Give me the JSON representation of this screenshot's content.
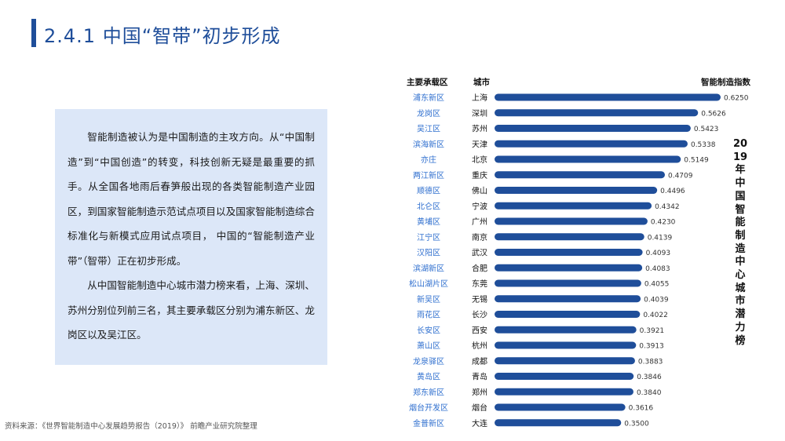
{
  "title": "2.4.1 中国“智带”初步形成",
  "paragraph1": "智能制造被认为是中国制造的主攻方向。从“中国制造”到“中国创造”的转变，科技创新无疑是最重要的抓手。从全国各地雨后春笋般出现的各类智能制造产业园区，到国家智能制造示范试点项目以及国家智能制造综合标准化与新模式应用试点项目， 中国的“智能制造产业带”（智带）正在初步形成。",
  "paragraph2": "从中国智能制造中心城市潜力榜来看，上海、深圳、苏州分别位列前三名，其主要承载区分别为浦东新区、龙岗区以及吴江区。",
  "source": "资料来源：《世界智能制造中心发展趋势报告（2019）》 前瞻产业研究院整理",
  "headers": {
    "zone": "主要承载区",
    "city": "城市",
    "index": "智能制造指数"
  },
  "vertical_title": "2019年中国智能制造中心城市潜力榜",
  "colors": {
    "bar": "#1f4e9a",
    "zone_text": "#2f6fcf",
    "title": "#1f4e9a",
    "panel": "#dce7f8"
  },
  "chart_data": {
    "type": "bar",
    "orientation": "horizontal",
    "title": "2019年中国智能制造中心城市潜力榜",
    "value_label": "智能制造指数",
    "categories": [
      "上海",
      "深圳",
      "苏州",
      "天津",
      "北京",
      "重庆",
      "佛山",
      "宁波",
      "广州",
      "南京",
      "武汉",
      "合肥",
      "东莞",
      "无锡",
      "长沙",
      "西安",
      "杭州",
      "成都",
      "青岛",
      "郑州",
      "烟台",
      "大连"
    ],
    "zones": [
      "浦东新区",
      "龙岗区",
      "吴江区",
      "滨海新区",
      "亦庄",
      "两江新区",
      "顺德区",
      "北仑区",
      "黄埔区",
      "江宁区",
      "汉阳区",
      "滨湖新区",
      "松山湖片区",
      "新吴区",
      "雨花区",
      "长安区",
      "萧山区",
      "龙泉驿区",
      "黄岛区",
      "郑东新区",
      "烟台开发区",
      "金普新区"
    ],
    "values": [
      0.625,
      0.5626,
      0.5423,
      0.5338,
      0.5149,
      0.4709,
      0.4496,
      0.4342,
      0.423,
      0.4139,
      0.4093,
      0.4083,
      0.4055,
      0.4039,
      0.4022,
      0.3921,
      0.3913,
      0.3883,
      0.3846,
      0.384,
      0.3616,
      0.35
    ],
    "value_labels": [
      "0.6250",
      "0.5626",
      "0.5423",
      "0.5338",
      "0.5149",
      "0.4709",
      "0.4496",
      "0.4342",
      "0.4230",
      "0.4139",
      "0.4093",
      "0.4083",
      "0.4055",
      "0.4039",
      "0.4022",
      "0.3921",
      "0.3913",
      "0.3883",
      "0.3846",
      "0.3840",
      "0.3616",
      "0.3500"
    ],
    "xlim": [
      0,
      0.625
    ]
  }
}
